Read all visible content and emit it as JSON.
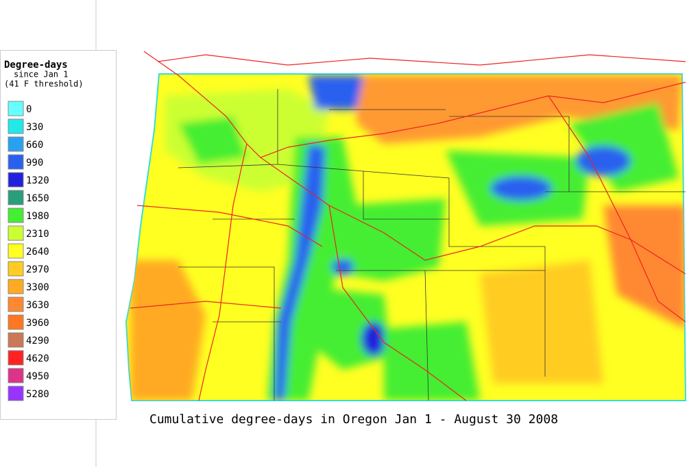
{
  "legend": {
    "title": "Degree-days",
    "subtitle": "since Jan 1",
    "threshold": "(41 F threshold)",
    "items": [
      {
        "value": 0,
        "color": "#66ffff"
      },
      {
        "value": 330,
        "color": "#22e8e8"
      },
      {
        "value": 660,
        "color": "#2aa0f0"
      },
      {
        "value": 990,
        "color": "#2a60f0"
      },
      {
        "value": 1320,
        "color": "#2222dd"
      },
      {
        "value": 1650,
        "color": "#2a9d7a"
      },
      {
        "value": 1980,
        "color": "#44ee33"
      },
      {
        "value": 2310,
        "color": "#ccff33"
      },
      {
        "value": 2640,
        "color": "#ffff22"
      },
      {
        "value": 2970,
        "color": "#ffcc22"
      },
      {
        "value": 3300,
        "color": "#ffaa22"
      },
      {
        "value": 3630,
        "color": "#ff8833"
      },
      {
        "value": 3960,
        "color": "#ff7722"
      },
      {
        "value": 4290,
        "color": "#cc7755"
      },
      {
        "value": 4620,
        "color": "#ff2222"
      },
      {
        "value": 4950,
        "color": "#dd3388"
      },
      {
        "value": 5280,
        "color": "#9933ff"
      }
    ]
  },
  "map": {
    "caption": "Cumulative degree-days in Oregon Jan 1 - August 30 2008"
  }
}
